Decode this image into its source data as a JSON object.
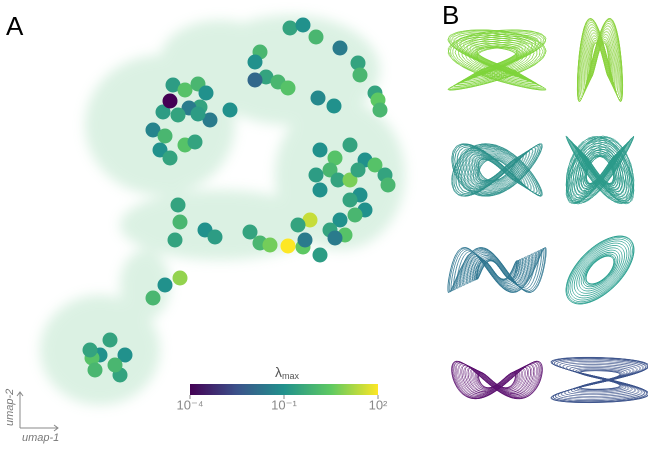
{
  "chart_data": {
    "type": "scatter",
    "panel_labels": [
      "A",
      "B"
    ],
    "xlabel": "umap-1",
    "ylabel": "umap-2",
    "colorbar_label": {
      "symbol": "λ",
      "subscript": "max"
    },
    "color_scale": "log",
    "clim": [
      0.0001,
      100
    ],
    "cticks": [
      {
        "value": 0.0001,
        "label": "10⁻⁴"
      },
      {
        "value": 0.1,
        "label": "10⁻¹"
      },
      {
        "value": 100,
        "label": "10²"
      }
    ],
    "xlim": [
      0,
      420
    ],
    "ylim": [
      0,
      440
    ],
    "x": [
      270,
      283,
      296,
      320,
      338,
      340,
      240,
      235,
      246,
      258,
      268,
      235,
      298,
      314,
      355,
      358,
      360,
      153,
      165,
      178,
      186,
      180,
      169,
      158,
      143,
      133,
      145,
      140,
      150,
      165,
      175,
      190,
      210,
      178,
      150,
      300,
      315,
      330,
      310,
      296,
      300,
      318,
      330,
      345,
      355,
      365,
      368,
      338,
      340,
      330,
      345,
      335,
      320,
      310,
      325,
      315,
      290,
      278,
      300,
      158,
      160,
      155,
      185,
      195,
      230,
      240,
      250,
      268,
      283,
      285,
      160,
      145,
      133,
      90,
      80,
      72,
      75,
      100,
      105,
      95,
      70
    ],
    "y": [
      412,
      415,
      403,
      392,
      377,
      365,
      388,
      378,
      363,
      358,
      352,
      360,
      342,
      334,
      347,
      340,
      330,
      355,
      350,
      356,
      347,
      333,
      332,
      325,
      328,
      310,
      304,
      290,
      282,
      295,
      298,
      320,
      330,
      326,
      339,
      290,
      282,
      295,
      270,
      265,
      250,
      260,
      260,
      280,
      275,
      265,
      255,
      270,
      245,
      240,
      230,
      225,
      220,
      210,
      205,
      202,
      220,
      215,
      185,
      235,
      218,
      200,
      210,
      203,
      208,
      197,
      195,
      194,
      193,
      200,
      162,
      155,
      142,
      100,
      85,
      82,
      70,
      65,
      85,
      75,
      90
    ],
    "values": [
      0.3,
      0.1,
      1,
      0.03,
      0.3,
      1,
      1,
      0.1,
      0.3,
      1,
      2,
      0.01,
      0.06,
      0.1,
      0.3,
      3,
      1,
      0.2,
      2,
      1,
      0.1,
      0.3,
      0.03,
      0.3,
      0.2,
      0.05,
      1,
      0.1,
      0.3,
      2,
      0.3,
      0.03,
      0.1,
      0.2,
      0.0001,
      0.1,
      2,
      0.3,
      1,
      0.2,
      0.1,
      0.3,
      6,
      0.1,
      2,
      0.3,
      1,
      0.3,
      0.1,
      0.3,
      0.1,
      1,
      0.1,
      0.3,
      2,
      0.03,
      30,
      0.3,
      0.2,
      0.3,
      1,
      0.3,
      0.1,
      0.2,
      0.3,
      1,
      5,
      100,
      3,
      0.03,
      10,
      0.1,
      1,
      0.3,
      0.1,
      2,
      1,
      0.3,
      0.1,
      1,
      0.3
    ]
  }
}
